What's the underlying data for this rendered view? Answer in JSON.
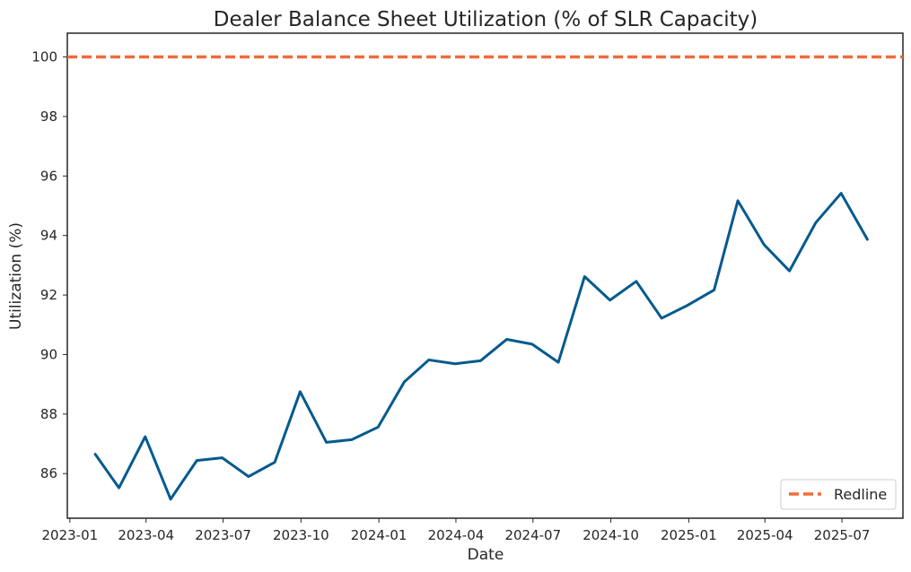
{
  "chart_data": {
    "type": "line",
    "title": "Dealer Balance Sheet Utilization (% of SLR Capacity)",
    "xlabel": "Date",
    "ylabel": "Utilization (%)",
    "x": [
      "2023-01-31",
      "2023-02-28",
      "2023-03-31",
      "2023-04-30",
      "2023-05-31",
      "2023-06-30",
      "2023-07-31",
      "2023-08-31",
      "2023-09-30",
      "2023-10-31",
      "2023-11-30",
      "2023-12-31",
      "2024-01-31",
      "2024-02-29",
      "2024-03-31",
      "2024-04-30",
      "2024-05-31",
      "2024-06-30",
      "2024-07-31",
      "2024-08-31",
      "2024-09-30",
      "2024-10-31",
      "2024-11-30",
      "2024-12-31",
      "2025-01-31",
      "2025-02-28",
      "2025-03-31",
      "2025-04-30",
      "2025-05-31",
      "2025-06-30",
      "2025-07-31"
    ],
    "series": [
      {
        "name": "",
        "color": "#045a8d",
        "values": [
          86.65,
          85.52,
          87.24,
          85.14,
          86.44,
          86.53,
          85.9,
          86.38,
          88.75,
          87.05,
          87.14,
          87.56,
          89.08,
          89.82,
          89.69,
          89.79,
          90.51,
          90.35,
          89.74,
          92.62,
          91.83,
          92.46,
          91.22,
          91.66,
          92.17,
          95.17,
          93.69,
          92.81,
          94.43,
          95.42,
          93.87
        ]
      }
    ],
    "reference_lines": [
      {
        "name": "Redline",
        "y": 100,
        "color": "#f26b3a",
        "style": "dashed"
      }
    ],
    "ylim": [
      84.5,
      100.8
    ],
    "xlim": [
      "2022-12-29",
      "2025-09-11"
    ],
    "y_ticks": [
      86,
      88,
      90,
      92,
      94,
      96,
      98,
      100
    ],
    "x_ticks": [
      "2023-01",
      "2023-04",
      "2023-07",
      "2023-10",
      "2024-01",
      "2024-04",
      "2024-07",
      "2024-10",
      "2025-01",
      "2025-04",
      "2025-07"
    ],
    "grid": false,
    "legend": {
      "position": "bottom-right",
      "entries": [
        "Redline"
      ]
    }
  }
}
